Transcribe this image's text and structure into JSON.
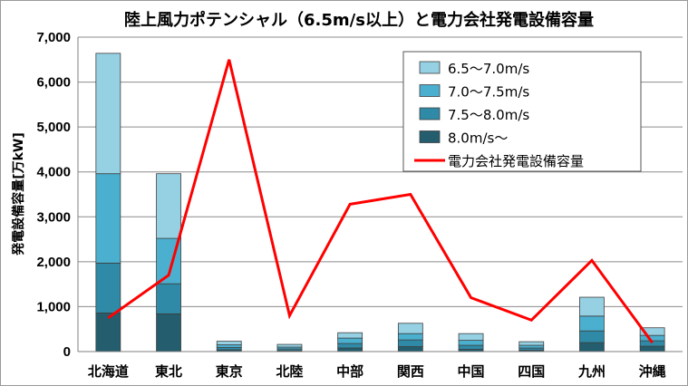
{
  "chart_data": {
    "type": "bar",
    "title": "陸上風力ポテンシャル（6.5m/s以上）と電力会社発電設備容量",
    "ylabel": "発電設備容量[万kW]",
    "xlabel": "",
    "ylim": [
      0,
      7000
    ],
    "yticks": [
      "0",
      "1,000",
      "2,000",
      "3,000",
      "4,000",
      "5,000",
      "6,000",
      "7,000"
    ],
    "grid": true,
    "legend_position": "top-right",
    "stacked": true,
    "categories": [
      "北海道",
      "東北",
      "東京",
      "北陸",
      "中部",
      "関西",
      "中国",
      "四国",
      "九州",
      "沖縄"
    ],
    "series": [
      {
        "name": "8.0m/s～",
        "kind": "bar",
        "color": "#235d6e",
        "values": [
          860,
          840,
          40,
          20,
          80,
          110,
          50,
          30,
          200,
          120
        ]
      },
      {
        "name": "7.5～8.0m/s",
        "kind": "bar",
        "color": "#2e8aa6",
        "values": [
          1110,
          670,
          50,
          40,
          100,
          150,
          90,
          50,
          260,
          120
        ]
      },
      {
        "name": "7.0～7.5m/s",
        "kind": "bar",
        "color": "#4bb0cf",
        "values": [
          1990,
          1010,
          60,
          40,
          120,
          140,
          110,
          60,
          330,
          120
        ]
      },
      {
        "name": "6.5～7.0m/s",
        "kind": "bar",
        "color": "#95d0e3",
        "values": [
          2680,
          1440,
          80,
          60,
          120,
          230,
          150,
          80,
          420,
          170
        ]
      },
      {
        "name": "電力会社発電設備容量",
        "kind": "line",
        "color": "#ff0000",
        "values": [
          750,
          1700,
          6500,
          800,
          3280,
          3500,
          1200,
          700,
          2030,
          200
        ]
      }
    ]
  }
}
